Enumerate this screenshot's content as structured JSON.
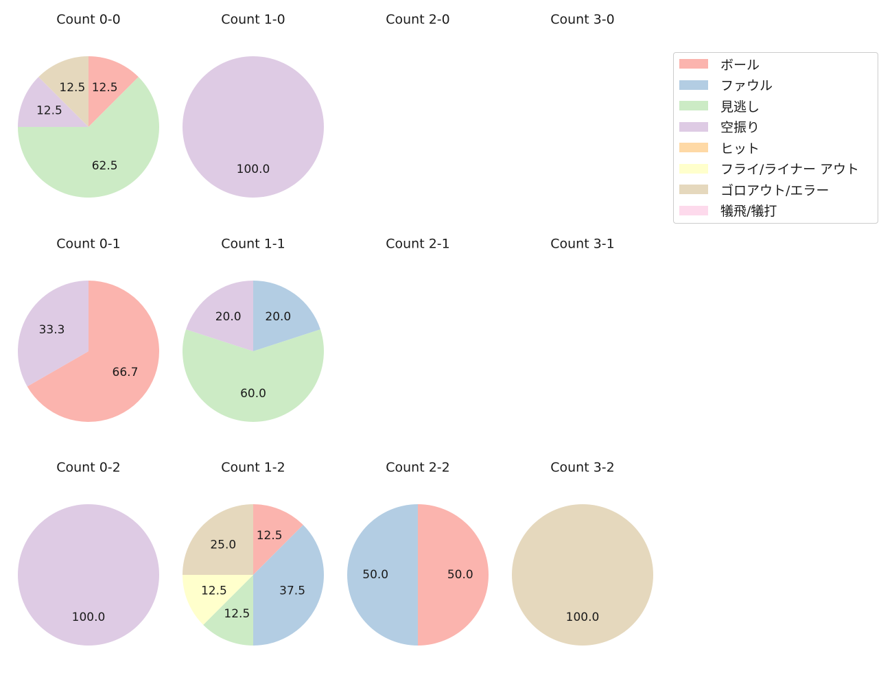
{
  "colors": {
    "ボール": "#fbb4ae",
    "ファウル": "#b3cde3",
    "見逃し": "#ccebc5",
    "空振り": "#decbe4",
    "ヒット": "#fed9a6",
    "フライ/ライナー アウト": "#ffffcc",
    "ゴロアウト/エラー": "#e5d8bd",
    "犠飛/犠打": "#fddaec"
  },
  "legend": {
    "items": [
      {
        "label": "ボール",
        "color": "#fbb4ae"
      },
      {
        "label": "ファウル",
        "color": "#b3cde3"
      },
      {
        "label": "見逃し",
        "color": "#ccebc5"
      },
      {
        "label": "空振り",
        "color": "#decbe4"
      },
      {
        "label": "ヒット",
        "color": "#fed9a6"
      },
      {
        "label": "フライ/ライナー アウト",
        "color": "#ffffcc"
      },
      {
        "label": "ゴロアウト/エラー",
        "color": "#e5d8bd"
      },
      {
        "label": "犠飛/犠打",
        "color": "#fddaec"
      }
    ]
  },
  "chart_data": [
    {
      "type": "pie",
      "title": "Count 0-0",
      "labels": [
        "ボール",
        "見逃し",
        "空振り",
        "ゴロアウト/エラー"
      ],
      "values": [
        12.5,
        62.5,
        12.5,
        12.5
      ]
    },
    {
      "type": "pie",
      "title": "Count 1-0",
      "labels": [
        "空振り"
      ],
      "values": [
        100.0
      ]
    },
    {
      "type": "pie",
      "title": "Count 2-0",
      "labels": [],
      "values": []
    },
    {
      "type": "pie",
      "title": "Count 3-0",
      "labels": [],
      "values": []
    },
    {
      "type": "pie",
      "title": "Count 0-1",
      "labels": [
        "ボール",
        "空振り"
      ],
      "values": [
        66.7,
        33.3
      ]
    },
    {
      "type": "pie",
      "title": "Count 1-1",
      "labels": [
        "ファウル",
        "見逃し",
        "空振り"
      ],
      "values": [
        20.0,
        60.0,
        20.0
      ]
    },
    {
      "type": "pie",
      "title": "Count 2-1",
      "labels": [],
      "values": []
    },
    {
      "type": "pie",
      "title": "Count 3-1",
      "labels": [],
      "values": []
    },
    {
      "type": "pie",
      "title": "Count 0-2",
      "labels": [
        "空振り"
      ],
      "values": [
        100.0
      ]
    },
    {
      "type": "pie",
      "title": "Count 1-2",
      "labels": [
        "ボール",
        "ファウル",
        "見逃し",
        "フライ/ライナー アウト",
        "ゴロアウト/エラー"
      ],
      "values": [
        12.5,
        37.5,
        12.5,
        12.5,
        25.0
      ]
    },
    {
      "type": "pie",
      "title": "Count 2-2",
      "labels": [
        "ボール",
        "ファウル"
      ],
      "values": [
        50.0,
        50.0
      ]
    },
    {
      "type": "pie",
      "title": "Count 3-2",
      "labels": [
        "ゴロアウト/エラー"
      ],
      "values": [
        100.0
      ]
    }
  ]
}
